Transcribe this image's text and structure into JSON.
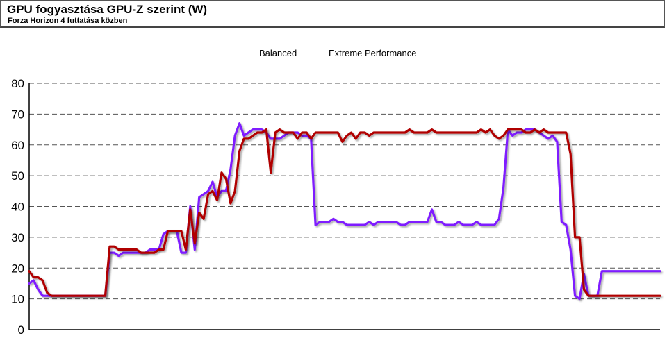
{
  "header": {
    "title": "GPU fogyasztása GPU-Z szerint (W)",
    "subtitle": "Forza Horizon 4 futtatása közben"
  },
  "chart_data": {
    "type": "line",
    "title": "GPU fogyasztása GPU-Z szerint (W)",
    "subtitle": "Forza Horizon 4 futtatása közben",
    "xlabel": "",
    "ylabel": "",
    "ylim": [
      0,
      80
    ],
    "yticks": [
      "0",
      "10",
      "20",
      "30",
      "40",
      "50",
      "60",
      "70",
      "80"
    ],
    "grid": "horizontal-dashed",
    "legend_position": "top-center",
    "x": [
      0,
      5,
      10,
      15,
      20,
      25,
      30,
      35,
      40,
      45,
      50,
      55,
      60,
      65,
      70,
      75,
      80,
      85,
      90,
      95,
      100,
      105,
      110,
      115,
      120,
      125,
      130,
      135,
      140,
      145,
      150,
      155,
      160,
      165,
      170,
      175,
      180,
      185,
      190,
      195,
      200,
      205,
      210,
      215,
      220,
      225,
      230,
      235,
      240,
      245,
      250,
      255,
      260,
      265,
      270,
      275,
      280,
      285,
      290,
      295,
      300,
      305,
      310,
      315,
      320,
      325,
      330,
      335,
      340,
      345,
      350,
      355,
      360,
      365,
      370,
      375,
      380,
      385,
      390,
      395,
      400,
      405,
      410,
      415,
      420,
      425,
      430,
      435,
      440,
      445,
      450,
      455,
      460,
      465,
      470,
      475,
      480,
      485,
      490,
      495,
      500,
      505,
      510,
      515,
      520,
      525,
      530,
      535,
      540,
      545,
      550,
      555,
      560,
      565,
      570,
      575,
      580,
      585,
      590,
      595,
      600,
      605,
      610,
      615,
      620,
      625,
      630,
      635,
      640,
      645,
      650,
      655,
      660,
      665,
      670,
      675,
      680,
      685,
      690,
      695,
      700,
      705
    ],
    "series": [
      {
        "name": "Balanced",
        "color": "#7f1fff",
        "values": [
          15,
          16,
          13,
          11,
          11,
          11,
          11,
          11,
          11,
          11,
          11,
          11,
          11,
          11,
          11,
          11,
          11,
          11,
          25,
          25,
          24,
          25,
          25,
          25,
          25,
          25,
          25,
          26,
          26,
          26,
          31,
          32,
          32,
          32,
          25,
          25,
          40,
          26,
          43,
          44,
          45,
          48,
          43,
          45,
          45,
          52,
          63,
          67,
          63,
          64,
          65,
          65,
          65,
          64,
          62,
          62,
          62,
          63,
          64,
          64,
          64,
          63,
          63,
          62,
          34,
          35,
          35,
          35,
          36,
          35,
          35,
          34,
          34,
          34,
          34,
          34,
          35,
          34,
          35,
          35,
          35,
          35,
          35,
          34,
          34,
          35,
          35,
          35,
          35,
          35,
          39,
          35,
          35,
          34,
          34,
          34,
          35,
          34,
          34,
          34,
          35,
          34,
          34,
          34,
          34,
          36,
          46,
          65,
          63,
          64,
          64,
          65,
          65,
          65,
          64,
          63,
          62,
          63,
          61,
          35,
          34,
          26,
          11,
          10,
          18,
          11,
          11,
          11,
          19,
          19,
          19,
          19,
          19,
          19,
          19,
          19,
          19,
          19,
          19,
          19,
          19,
          19
        ]
      },
      {
        "name": "Extreme Performance",
        "color": "#b00000",
        "values": [
          19,
          17,
          17,
          16,
          12,
          11,
          11,
          11,
          11,
          11,
          11,
          11,
          11,
          11,
          11,
          11,
          11,
          11,
          27,
          27,
          26,
          26,
          26,
          26,
          26,
          25,
          25,
          25,
          25,
          26,
          26,
          32,
          32,
          32,
          32,
          26,
          39,
          28,
          38,
          36,
          44,
          45,
          42,
          51,
          49,
          41,
          45,
          58,
          62,
          62,
          63,
          64,
          64,
          65,
          51,
          64,
          65,
          64,
          64,
          64,
          62,
          64,
          64,
          62,
          64,
          64,
          64,
          64,
          64,
          64,
          61,
          63,
          64,
          62,
          64,
          64,
          63,
          64,
          64,
          64,
          64,
          64,
          64,
          64,
          64,
          65,
          64,
          64,
          64,
          64,
          65,
          64,
          64,
          64,
          64,
          64,
          64,
          64,
          64,
          64,
          64,
          65,
          64,
          65,
          63,
          62,
          63,
          65,
          65,
          65,
          65,
          64,
          64,
          65,
          64,
          65,
          64,
          64,
          64,
          64,
          64,
          57,
          30,
          30,
          13,
          11,
          11,
          11,
          11,
          11,
          11,
          11,
          11,
          11,
          11,
          11,
          11,
          11,
          11,
          11,
          11,
          11
        ]
      }
    ]
  }
}
